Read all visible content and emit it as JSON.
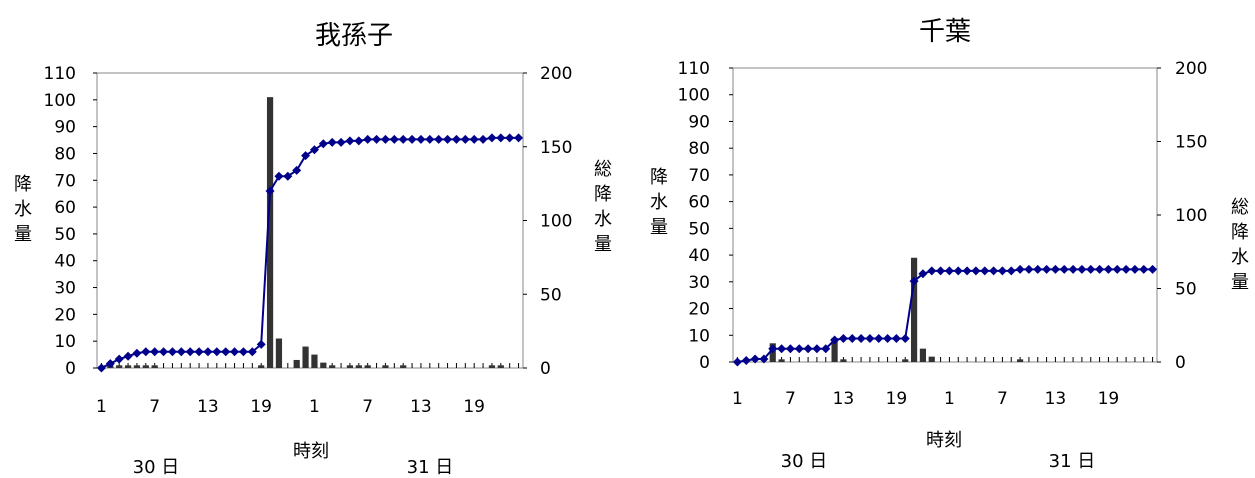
{
  "chart_data": [
    {
      "type": "bar+line",
      "title": "我孫子",
      "xlabel": "時刻",
      "ylabel_left": "降水量",
      "ylabel_right": "総降水量",
      "ylim_left": [
        0,
        110
      ],
      "ylim_right": [
        0,
        200
      ],
      "yticks_left": [
        "0",
        "10",
        "20",
        "30",
        "40",
        "50",
        "60",
        "70",
        "80",
        "90",
        "100",
        "110"
      ],
      "yticks_right": [
        "0",
        "50",
        "100",
        "150",
        "200"
      ],
      "xtick_labels": [
        "1",
        "7",
        "13",
        "19",
        "1",
        "7",
        "13",
        "19"
      ],
      "day_labels": [
        "30 日",
        "31 日"
      ],
      "hours": 48,
      "bars": [
        0,
        1,
        1,
        1,
        1,
        1,
        1,
        0,
        0,
        0,
        0,
        0,
        0,
        0,
        0,
        0,
        0,
        0,
        1,
        101,
        11,
        0,
        3,
        8,
        5,
        2,
        1,
        0,
        1,
        1,
        1,
        0,
        1,
        0,
        1,
        0,
        0,
        0,
        0,
        0,
        0,
        0,
        0,
        0,
        1,
        1,
        0,
        0
      ],
      "cumulative": [
        0,
        3,
        6,
        8,
        10,
        11,
        11,
        11,
        11,
        11,
        11,
        11,
        11,
        11,
        11,
        11,
        11,
        11,
        16,
        120,
        130,
        130,
        134,
        144,
        148,
        152,
        153,
        153,
        154,
        154,
        155,
        155,
        155,
        155,
        155,
        155,
        155,
        155,
        155,
        155,
        155,
        155,
        155,
        155,
        156,
        156,
        156,
        156
      ]
    },
    {
      "type": "bar+line",
      "title": "千葉",
      "xlabel": "時刻",
      "ylabel_left": "降水量",
      "ylabel_right": "総降水量",
      "ylim_left": [
        0,
        110
      ],
      "ylim_right": [
        0,
        200
      ],
      "yticks_left": [
        "0",
        "10",
        "20",
        "30",
        "40",
        "50",
        "60",
        "70",
        "80",
        "90",
        "100",
        "110"
      ],
      "yticks_right": [
        "0",
        "50",
        "100",
        "150",
        "200"
      ],
      "xtick_labels": [
        "1",
        "7",
        "13",
        "19",
        "1",
        "7",
        "13",
        "19"
      ],
      "day_labels": [
        "30 日",
        "31 日"
      ],
      "hours": 48,
      "bars": [
        0,
        0,
        0,
        0,
        7,
        1,
        0,
        0,
        0,
        0,
        0,
        9,
        1,
        0,
        0,
        0,
        0,
        0,
        0,
        1,
        39,
        5,
        2,
        0,
        0,
        0,
        0,
        0,
        0,
        0,
        0,
        0,
        1,
        0,
        0,
        0,
        0,
        0,
        0,
        0,
        0,
        0,
        0,
        0,
        0,
        0,
        0,
        0
      ],
      "cumulative": [
        0,
        1,
        2,
        2,
        9,
        9,
        9,
        9,
        9,
        9,
        9,
        15,
        16,
        16,
        16,
        16,
        16,
        16,
        16,
        16,
        55,
        60,
        62,
        62,
        62,
        62,
        62,
        62,
        62,
        62,
        62,
        62,
        63,
        63,
        63,
        63,
        63,
        63,
        63,
        63,
        63,
        63,
        63,
        63,
        63,
        63,
        63,
        63
      ]
    }
  ],
  "colors": {
    "bar": "#333333",
    "line": "#00008B"
  }
}
